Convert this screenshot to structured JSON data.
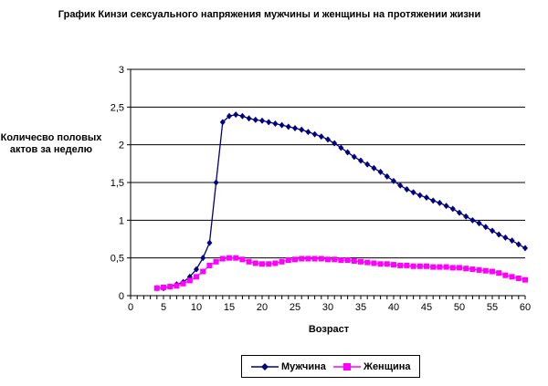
{
  "chart_data": {
    "type": "line",
    "title": "График Кинзи сексуального напряжения мужчины и женщины на протяжении жизни",
    "xlabel": "Возраст",
    "ylabel": "Количесво половых актов за неделю",
    "xlim": [
      0,
      60
    ],
    "ylim": [
      0,
      3
    ],
    "x_ticks": [
      "0",
      "5",
      "10",
      "15",
      "20",
      "25",
      "30",
      "35",
      "40",
      "45",
      "50",
      "55",
      "60"
    ],
    "y_ticks": [
      "0",
      "0,5",
      "1",
      "1,5",
      "2",
      "2,5",
      "3"
    ],
    "grid": "horizontal",
    "legend_position": "bottom",
    "x": [
      4,
      5,
      6,
      7,
      8,
      9,
      10,
      11,
      12,
      13,
      14,
      15,
      16,
      17,
      18,
      19,
      20,
      21,
      22,
      23,
      24,
      25,
      26,
      27,
      28,
      29,
      30,
      31,
      32,
      33,
      34,
      35,
      36,
      37,
      38,
      39,
      40,
      41,
      42,
      43,
      44,
      45,
      46,
      47,
      48,
      49,
      50,
      51,
      52,
      53,
      54,
      55,
      56,
      57,
      58,
      59,
      60
    ],
    "series": [
      {
        "name": "Мужчина",
        "color": "#000080",
        "marker": "diamond",
        "values": [
          0.1,
          0.1,
          0.12,
          0.15,
          0.18,
          0.25,
          0.35,
          0.5,
          0.7,
          1.5,
          2.3,
          2.38,
          2.4,
          2.38,
          2.35,
          2.33,
          2.32,
          2.3,
          2.28,
          2.26,
          2.24,
          2.22,
          2.2,
          2.17,
          2.14,
          2.11,
          2.07,
          2.02,
          1.96,
          1.9,
          1.84,
          1.79,
          1.74,
          1.69,
          1.64,
          1.58,
          1.52,
          1.46,
          1.41,
          1.37,
          1.33,
          1.3,
          1.26,
          1.23,
          1.19,
          1.15,
          1.1,
          1.05,
          1.0,
          0.96,
          0.91,
          0.86,
          0.81,
          0.77,
          0.73,
          0.68,
          0.63
        ]
      },
      {
        "name": "Женщина",
        "color": "#ff00ff",
        "marker": "square",
        "values": [
          0.1,
          0.11,
          0.12,
          0.13,
          0.16,
          0.2,
          0.25,
          0.32,
          0.4,
          0.45,
          0.49,
          0.5,
          0.5,
          0.48,
          0.45,
          0.43,
          0.42,
          0.42,
          0.43,
          0.45,
          0.47,
          0.48,
          0.49,
          0.49,
          0.49,
          0.49,
          0.48,
          0.48,
          0.47,
          0.47,
          0.46,
          0.45,
          0.44,
          0.43,
          0.42,
          0.42,
          0.41,
          0.4,
          0.4,
          0.39,
          0.39,
          0.39,
          0.38,
          0.38,
          0.38,
          0.37,
          0.37,
          0.36,
          0.35,
          0.34,
          0.33,
          0.32,
          0.3,
          0.27,
          0.25,
          0.23,
          0.21
        ]
      }
    ]
  }
}
